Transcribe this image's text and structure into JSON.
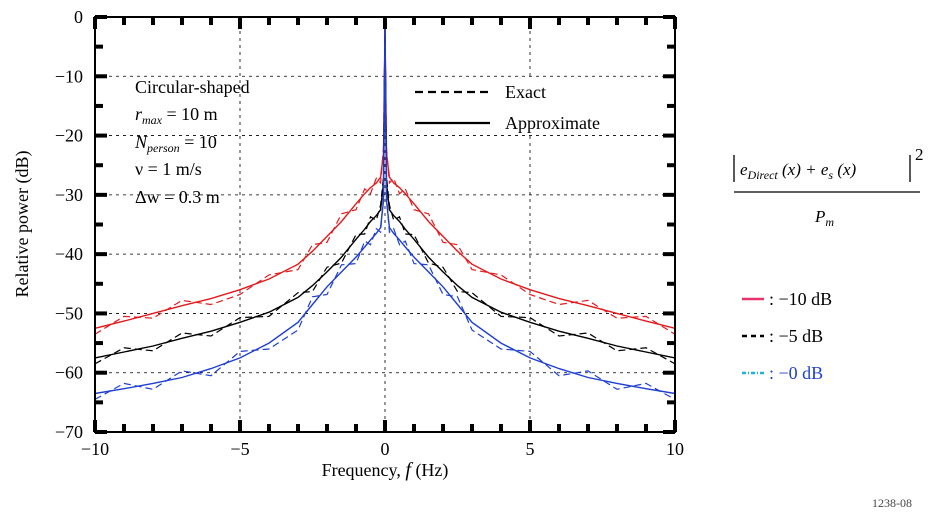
{
  "chart_data": {
    "type": "line",
    "xlabel": "Frequency, ",
    "xlabel_italic": "f",
    "xlabel_unit": " (Hz)",
    "ylabel": "Relative power (dB)",
    "xlim": [
      -10,
      10
    ],
    "ylim": [
      -70,
      0
    ],
    "x_ticks": [
      -10,
      -5,
      0,
      5,
      10
    ],
    "y_ticks": [
      0,
      -10,
      -20,
      -30,
      -40,
      -50,
      -60,
      -70
    ],
    "x_tick_labels": [
      "−10",
      "−5",
      "0",
      "5",
      "10"
    ],
    "y_tick_labels": [
      "0",
      "−10",
      "−20",
      "−30",
      "−40",
      "−50",
      "−60",
      "−70"
    ],
    "grid": true,
    "x": [
      -10,
      -9,
      -8,
      -7,
      -6,
      -5,
      -4,
      -3,
      -2.5,
      -2,
      -1.5,
      -1,
      -0.7,
      -0.5,
      -0.3,
      -0.15,
      -0.05,
      0,
      0.05,
      0.15,
      0.3,
      0.5,
      0.7,
      1,
      1.5,
      2,
      2.5,
      3,
      4,
      5,
      6,
      7,
      8,
      9,
      10
    ],
    "series": [
      {
        "color": "#e41a1c",
        "approx": [
          -52.5,
          -51.3,
          -50,
          -48.7,
          -47.5,
          -46,
          -44.2,
          -41.7,
          -39.5,
          -37,
          -34.5,
          -31.5,
          -29.8,
          -28.8,
          -28,
          -27,
          -23,
          -2,
          -23,
          -27,
          -28,
          -28.8,
          -29.8,
          -31.5,
          -34.5,
          -37,
          -39.5,
          -41.7,
          -44.2,
          -46,
          -47.5,
          -48.7,
          -50,
          -51.3,
          -52.5
        ],
        "exact": [
          -53.5,
          -50.5,
          -50.8,
          -47.8,
          -48.5,
          -46.8,
          -43.5,
          -42.6,
          -38.4,
          -38,
          -33.2,
          -32.5,
          -29,
          -29.8,
          -27.2,
          -28,
          -22,
          -2,
          -22,
          -28,
          -27.2,
          -29.8,
          -29,
          -32.5,
          -33.2,
          -38,
          -38.4,
          -42.6,
          -43.5,
          -46.8,
          -48.5,
          -47.8,
          -50.8,
          -50.5,
          -53.5
        ]
      },
      {
        "color": "#000000",
        "approx": [
          -57.5,
          -56.5,
          -55.5,
          -54.2,
          -53,
          -51.5,
          -49.8,
          -47.3,
          -45.3,
          -43,
          -40.5,
          -37.5,
          -35.8,
          -34.5,
          -33.5,
          -32.5,
          -28,
          -2,
          -28,
          -32.5,
          -33.5,
          -34.5,
          -35.8,
          -37.5,
          -40.5,
          -43,
          -45.3,
          -47.3,
          -49.8,
          -51.5,
          -53,
          -54.2,
          -55.5,
          -56.5,
          -57.5
        ],
        "exact": [
          -58.5,
          -55.8,
          -56.3,
          -53.3,
          -53.8,
          -50.7,
          -50.5,
          -46.5,
          -46.3,
          -42.2,
          -41.5,
          -36.7,
          -36.6,
          -33.7,
          -34.3,
          -31.7,
          -27,
          -2,
          -27,
          -31.7,
          -34.3,
          -33.7,
          -36.6,
          -36.7,
          -41.5,
          -42.2,
          -46.3,
          -46.5,
          -50.5,
          -50.7,
          -53.8,
          -53.3,
          -56.3,
          -55.8,
          -58.5
        ]
      },
      {
        "color": "#1f3fd1",
        "approx": [
          -63.5,
          -62.7,
          -61.8,
          -60.8,
          -59.3,
          -57.5,
          -55,
          -51.5,
          -48.5,
          -45.5,
          -43,
          -40.5,
          -38.8,
          -37.6,
          -36.5,
          -35.5,
          -31,
          -2,
          -31,
          -35.5,
          -36.5,
          -37.6,
          -38.8,
          -40.5,
          -43,
          -45.5,
          -48.5,
          -51.5,
          -55,
          -57.5,
          -59.3,
          -60.8,
          -61.8,
          -62.7,
          -63.5
        ],
        "exact": [
          -64.5,
          -61.8,
          -62.8,
          -59.7,
          -60.5,
          -56.4,
          -56,
          -52.8,
          -47.2,
          -46.8,
          -41.8,
          -41.6,
          -37.8,
          -38.4,
          -35.7,
          -36.3,
          -30,
          -2,
          -30,
          -36.3,
          -35.7,
          -38.4,
          -37.8,
          -41.6,
          -41.8,
          -46.8,
          -47.2,
          -52.8,
          -56,
          -56.4,
          -60.5,
          -59.7,
          -62.8,
          -61.8,
          -64.5
        ]
      }
    ]
  },
  "annotation": {
    "line1": "Circular-shaped",
    "line2_var": "r",
    "line2_sub": "max",
    "line2_rest": " = 10 m",
    "line3_var": "N",
    "line3_sub": "person",
    "line3_rest": " = 10",
    "line4": "ν = 1 m/s",
    "line5": "Δw = 0.3 m"
  },
  "style_legend": [
    {
      "label": "Exact",
      "dash": "8,5"
    },
    {
      "label": "Approximate",
      "dash": ""
    }
  ],
  "formula": {
    "e_direct": "e",
    "direct_sub": "Direct",
    "arg1": " (x) + ",
    "e_s": "e",
    "s_sub": "s",
    "arg2": " (x)",
    "exponent": "2",
    "denominator": "P",
    "denominator_sub": "m"
  },
  "color_legend": [
    {
      "marker_color": "#e8336d",
      "dash": "",
      "label": ": −10 dB"
    },
    {
      "marker_color": "#000000",
      "dash": "5,4",
      "label": ": −5 dB"
    },
    {
      "marker_color": "#1fb4d8",
      "dash": "4,2,1,2",
      "label": ": −0 dB"
    }
  ],
  "figure_id": "1238-08"
}
